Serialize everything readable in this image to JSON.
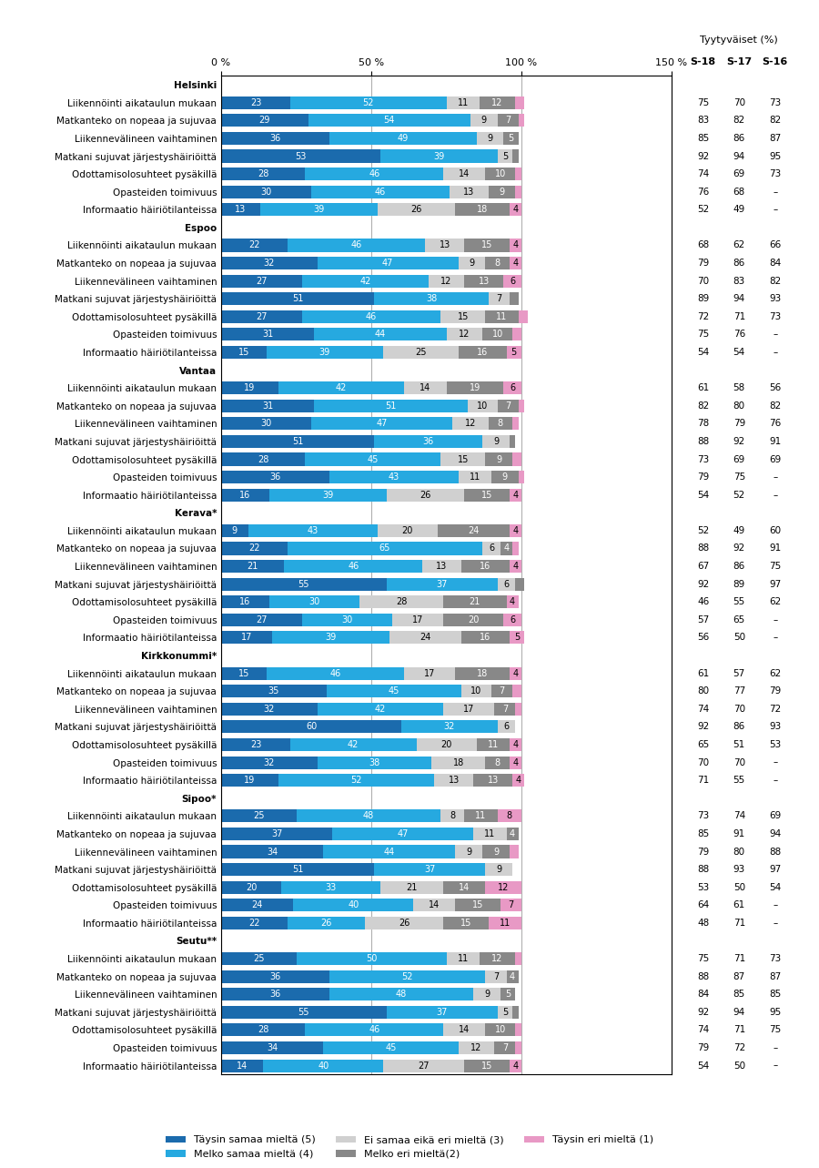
{
  "chart_data": {
    "type": "bar",
    "orientation": "horizontal",
    "stacked": true,
    "data_labels": true,
    "grid": true,
    "legend": "lower center",
    "categories": [
      "Helsinki",
      "Liikennöinti aikataulun mukaan",
      "Matkanteko on nopeaa ja sujuvaa",
      "Liikennevälineen vaihtaminen",
      "Matkani sujuvat järjestyshäiriöittä",
      "Odottamisolosuhteet pysäkillä",
      "Opasteiden toimivuus",
      "Informaatio häiriötilanteissa",
      "Espoo",
      "Liikennöinti aikataulun mukaan",
      "Matkanteko on nopeaa ja sujuvaa",
      "Liikennevälineen vaihtaminen",
      "Matkani sujuvat järjestyshäiriöittä",
      "Odottamisolosuhteet pysäkillä",
      "Opasteiden toimivuus",
      "Informaatio häiriötilanteissa",
      "Vantaa",
      "Liikennöinti aikataulun mukaan",
      "Matkanteko on nopeaa ja sujuvaa",
      "Liikennevälineen vaihtaminen",
      "Matkani sujuvat järjestyshäiriöittä",
      "Odottamisolosuhteet pysäkillä",
      "Opasteiden toimivuus",
      "Informaatio häiriötilanteissa",
      "Kerava*",
      "Liikennöinti aikataulun mukaan",
      "Matkanteko on nopeaa ja sujuvaa",
      "Liikennevälineen vaihtaminen",
      "Matkani sujuvat järjestyshäiriöittä",
      "Odottamisolosuhteet pysäkillä",
      "Opasteiden toimivuus",
      "Informaatio häiriötilanteissa",
      "Kirkkonummi*",
      "Liikennöinti aikataulun mukaan",
      "Matkanteko on nopeaa ja sujuvaa",
      "Liikennevälineen vaihtaminen",
      "Matkani sujuvat järjestyshäiriöittä",
      "Odottamisolosuhteet pysäkillä",
      "Opasteiden toimivuus",
      "Informaatio häiriötilanteissa",
      "Sipoo*",
      "Liikennöinti aikataulun mukaan",
      "Matkanteko on nopeaa ja sujuvaa",
      "Liikennevälineen vaihtaminen",
      "Matkani sujuvat järjestyshäiriöittä",
      "Odottamisolosuhteet pysäkillä",
      "Opasteiden toimivuus",
      "Informaatio häiriötilanteissa",
      "Seutu**",
      "Liikennöinti aikataulun mukaan",
      "Matkanteko on nopeaa ja sujuvaa",
      "Liikennevälineen vaihtaminen",
      "Matkani sujuvat järjestyshäiriöittä",
      "Odottamisolosuhteet pysäkillä",
      "Opasteiden toimivuus",
      "Informaatio häiriötilanteissa"
    ],
    "series": [
      {
        "name": "Täysin samaa mieltä (5)",
        "color": "#1b6bad",
        "values": [
          null,
          23,
          29,
          36,
          53,
          28,
          30,
          13,
          null,
          22,
          32,
          27,
          51,
          27,
          31,
          15,
          null,
          19,
          31,
          30,
          51,
          28,
          36,
          16,
          null,
          9,
          22,
          21,
          55,
          16,
          27,
          17,
          null,
          15,
          35,
          32,
          60,
          23,
          32,
          19,
          null,
          25,
          37,
          34,
          51,
          20,
          24,
          22,
          null,
          25,
          36,
          36,
          55,
          28,
          34,
          14
        ]
      },
      {
        "name": "Melko samaa mieltä (4)",
        "color": "#26a9e0",
        "values": [
          null,
          52,
          54,
          49,
          39,
          46,
          46,
          39,
          null,
          46,
          47,
          42,
          38,
          46,
          44,
          39,
          null,
          42,
          51,
          47,
          36,
          45,
          43,
          39,
          null,
          43,
          65,
          46,
          37,
          30,
          30,
          39,
          null,
          46,
          45,
          42,
          32,
          42,
          38,
          52,
          null,
          48,
          47,
          44,
          37,
          33,
          40,
          26,
          null,
          50,
          52,
          48,
          37,
          46,
          45,
          40
        ]
      },
      {
        "name": "Ei samaa eikä eri mieltä (3)",
        "color": "#d0d0d0",
        "values": [
          null,
          11,
          9,
          9,
          5,
          14,
          13,
          26,
          null,
          13,
          9,
          12,
          7,
          15,
          12,
          25,
          null,
          14,
          10,
          12,
          9,
          15,
          11,
          26,
          null,
          20,
          6,
          13,
          6,
          28,
          17,
          24,
          null,
          17,
          10,
          17,
          6,
          20,
          18,
          13,
          null,
          8,
          11,
          9,
          9,
          21,
          14,
          26,
          null,
          11,
          7,
          9,
          5,
          14,
          12,
          27
        ]
      },
      {
        "name": "Melko eri mieltä(2)",
        "color": "#888888",
        "values": [
          null,
          12,
          7,
          5,
          2,
          10,
          9,
          18,
          null,
          15,
          8,
          13,
          3,
          11,
          10,
          16,
          null,
          19,
          7,
          8,
          2,
          9,
          9,
          15,
          null,
          24,
          4,
          16,
          3,
          21,
          20,
          16,
          null,
          18,
          7,
          7,
          0,
          11,
          8,
          13,
          null,
          11,
          4,
          9,
          0,
          14,
          15,
          15,
          null,
          12,
          4,
          5,
          2,
          10,
          7,
          15
        ],
        "value_labels": [
          null,
          "12",
          "7",
          "5",
          null,
          "10",
          "9",
          "18",
          null,
          "15",
          "8",
          "13",
          null,
          "11",
          "10",
          "16",
          null,
          "19",
          "7",
          "8",
          null,
          "9",
          "9",
          "15",
          null,
          "24",
          "4",
          "16",
          null,
          "21",
          "20",
          "16",
          null,
          "18",
          "7",
          "7",
          null,
          "11",
          "8",
          "13",
          null,
          "11",
          "4",
          "9",
          null,
          "14",
          "15",
          "15",
          null,
          "12",
          "4",
          "5",
          null,
          "10",
          "7",
          "15"
        ]
      },
      {
        "name": "Täysin eri mieltä (1)",
        "color": "#e899c5",
        "values": [
          null,
          3,
          2,
          0,
          0,
          2,
          2,
          4,
          null,
          4,
          4,
          6,
          0,
          3,
          3,
          5,
          null,
          6,
          2,
          2,
          0,
          3,
          2,
          4,
          null,
          4,
          2,
          4,
          0,
          4,
          6,
          5,
          null,
          4,
          3,
          2,
          0,
          4,
          4,
          4,
          null,
          8,
          0,
          3,
          0,
          12,
          7,
          11,
          null,
          2,
          0,
          0,
          0,
          2,
          2,
          4
        ],
        "value_labels": [
          null,
          null,
          null,
          null,
          null,
          null,
          null,
          "4",
          null,
          "4",
          "4",
          "6",
          null,
          null,
          null,
          "5",
          null,
          "6",
          null,
          null,
          null,
          null,
          null,
          "4",
          null,
          "4",
          null,
          "4",
          null,
          "4",
          "6",
          "5",
          null,
          "4",
          null,
          null,
          null,
          "4",
          "4",
          "4",
          null,
          "8",
          null,
          null,
          null,
          "12",
          "7",
          "11",
          null,
          null,
          null,
          null,
          null,
          null,
          null,
          "4"
        ]
      }
    ],
    "xlim": [
      0,
      150
    ],
    "xticks": [
      {
        "value": 0,
        "label": "0 %"
      },
      {
        "value": 50,
        "label": "50 %"
      },
      {
        "value": 100,
        "label": "100 %"
      },
      {
        "value": 150,
        "label": "150 %"
      }
    ],
    "table": {
      "title": "Tyytyväiset (%)",
      "missing_label": "–",
      "columns": [
        {
          "name": "S-18",
          "values": [
            null,
            75,
            83,
            85,
            92,
            74,
            76,
            52,
            null,
            68,
            79,
            70,
            89,
            72,
            75,
            54,
            null,
            61,
            82,
            78,
            88,
            73,
            79,
            54,
            null,
            52,
            88,
            67,
            92,
            46,
            57,
            56,
            null,
            61,
            80,
            74,
            92,
            65,
            70,
            71,
            null,
            73,
            85,
            79,
            88,
            53,
            64,
            48,
            null,
            75,
            88,
            84,
            92,
            74,
            79,
            54
          ]
        },
        {
          "name": "S-17",
          "values": [
            null,
            70,
            82,
            86,
            94,
            69,
            68,
            49,
            null,
            62,
            86,
            83,
            94,
            71,
            76,
            54,
            null,
            58,
            80,
            79,
            92,
            69,
            75,
            52,
            null,
            49,
            92,
            86,
            89,
            55,
            65,
            50,
            null,
            57,
            77,
            70,
            86,
            51,
            70,
            55,
            null,
            74,
            91,
            80,
            93,
            50,
            61,
            71,
            null,
            71,
            87,
            85,
            94,
            71,
            72,
            50
          ]
        },
        {
          "name": "S-16",
          "values": [
            null,
            73,
            82,
            87,
            95,
            73,
            null,
            null,
            null,
            66,
            84,
            82,
            93,
            73,
            null,
            null,
            null,
            56,
            82,
            76,
            91,
            69,
            null,
            null,
            null,
            60,
            91,
            75,
            97,
            62,
            null,
            null,
            null,
            62,
            79,
            72,
            93,
            53,
            null,
            null,
            null,
            69,
            94,
            88,
            97,
            54,
            null,
            null,
            null,
            73,
            87,
            85,
            95,
            75,
            null,
            null
          ]
        }
      ]
    }
  }
}
